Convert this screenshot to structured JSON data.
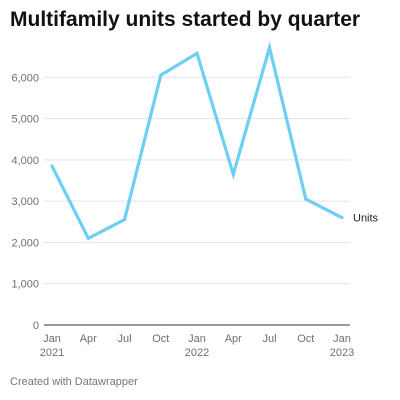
{
  "chart_data": {
    "type": "line",
    "title": "Multifamily units started by quarter",
    "xlabel": "",
    "ylabel": "",
    "x_ticks": [
      {
        "line1": "Jan",
        "line2": "2021"
      },
      {
        "line1": "Apr",
        "line2": ""
      },
      {
        "line1": "Jul",
        "line2": ""
      },
      {
        "line1": "Oct",
        "line2": ""
      },
      {
        "line1": "Jan",
        "line2": "2022"
      },
      {
        "line1": "Apr",
        "line2": ""
      },
      {
        "line1": "Jul",
        "line2": ""
      },
      {
        "line1": "Oct",
        "line2": ""
      },
      {
        "line1": "Jan",
        "line2": "2023"
      }
    ],
    "y_ticks": [
      {
        "value": 0,
        "label": "0"
      },
      {
        "value": 1000,
        "label": "1,000"
      },
      {
        "value": 2000,
        "label": "2,000"
      },
      {
        "value": 3000,
        "label": "3,000"
      },
      {
        "value": 4000,
        "label": "4,000"
      },
      {
        "value": 5000,
        "label": "5,000"
      },
      {
        "value": 6000,
        "label": "6,000"
      }
    ],
    "ylim": [
      0,
      7000
    ],
    "series": [
      {
        "name": "Units",
        "color": "#6dcff6",
        "values": [
          3850,
          2100,
          2550,
          6050,
          6580,
          3650,
          6720,
          3050,
          2600
        ]
      }
    ],
    "grid": true,
    "legend": "direct label at line end"
  },
  "footer": {
    "credit": "Created with Datawrapper"
  }
}
